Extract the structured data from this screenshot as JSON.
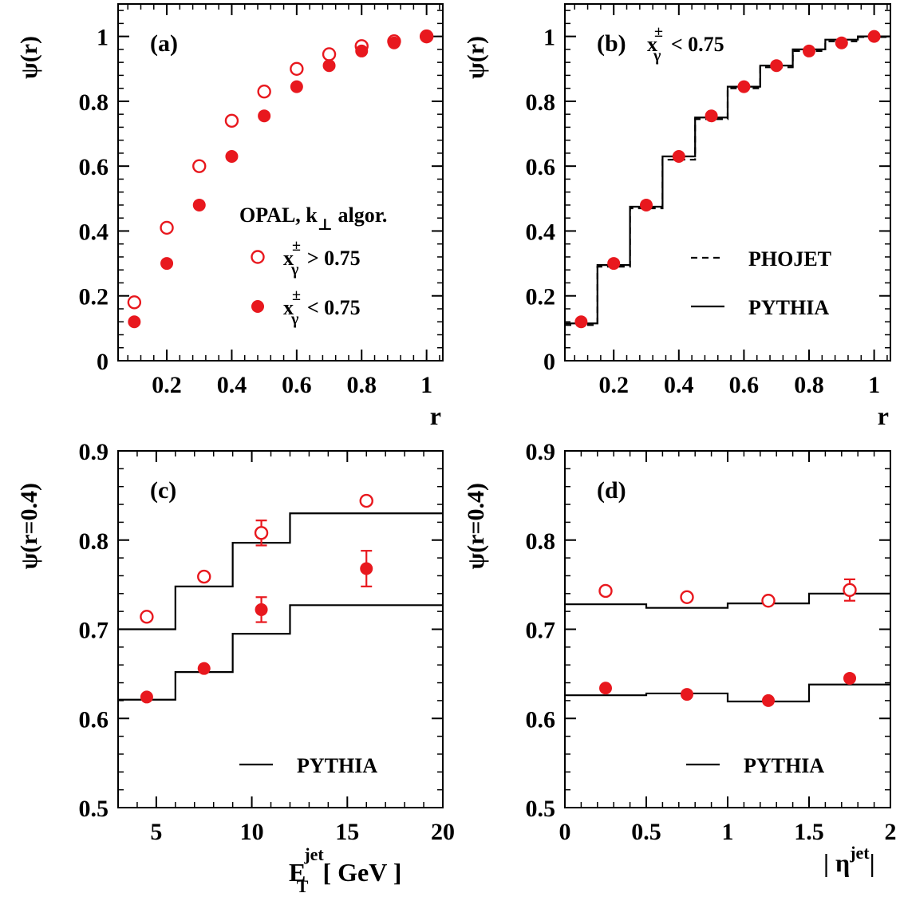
{
  "colors": {
    "data": "#e8181e",
    "frame": "#000000",
    "model": "#000000"
  },
  "chart_data": [
    {
      "id": "a",
      "type": "scatter",
      "panel_label": "(a)",
      "xlabel": "r",
      "ylabel": "ψ(r)",
      "xlim": [
        0.05,
        1.05
      ],
      "ylim": [
        0,
        1.1
      ],
      "xticks": [
        0.2,
        0.4,
        0.6,
        0.8,
        1
      ],
      "xtick_labels": [
        "0.2",
        "0.4",
        "0.6",
        "0.8",
        "1"
      ],
      "yticks": [
        0,
        0.2,
        0.4,
        0.6,
        0.8,
        1
      ],
      "ytick_labels": [
        "0",
        "0.2",
        "0.4",
        "0.6",
        "0.8",
        "1"
      ],
      "legend_title": "OPAL,  k",
      "legend_title_sub": "⊥",
      "legend_title_tail": " algor.",
      "series": [
        {
          "name": "x",
          "sup": "±",
          "sub": "γ",
          "cond": "> 0.75",
          "marker": "open",
          "x": [
            0.1,
            0.2,
            0.3,
            0.4,
            0.5,
            0.6,
            0.7,
            0.8,
            0.9,
            1.0
          ],
          "y": [
            0.18,
            0.41,
            0.6,
            0.74,
            0.83,
            0.9,
            0.945,
            0.97,
            0.985,
            1.0
          ]
        },
        {
          "name": "x",
          "sup": "±",
          "sub": "γ",
          "cond": "< 0.75",
          "marker": "filled",
          "x": [
            0.1,
            0.2,
            0.3,
            0.4,
            0.5,
            0.6,
            0.7,
            0.8,
            0.9,
            1.0
          ],
          "y": [
            0.12,
            0.3,
            0.48,
            0.63,
            0.755,
            0.845,
            0.91,
            0.955,
            0.98,
            1.0
          ]
        }
      ]
    },
    {
      "id": "b",
      "type": "scatter",
      "panel_label": "(b)",
      "header_var": "x",
      "header_sup": "±",
      "header_sub": "γ",
      "header_cond": "< 0.75",
      "xlabel": "r",
      "ylabel": "ψ(r)",
      "xlim": [
        0.05,
        1.05
      ],
      "ylim": [
        0,
        1.1
      ],
      "xticks": [
        0.2,
        0.4,
        0.6,
        0.8,
        1
      ],
      "xtick_labels": [
        "0.2",
        "0.4",
        "0.6",
        "0.8",
        "1"
      ],
      "yticks": [
        0,
        0.2,
        0.4,
        0.6,
        0.8,
        1
      ],
      "ytick_labels": [
        "0",
        "0.2",
        "0.4",
        "0.6",
        "0.8",
        "1"
      ],
      "series": [
        {
          "marker": "filled",
          "x": [
            0.1,
            0.2,
            0.3,
            0.4,
            0.5,
            0.6,
            0.7,
            0.8,
            0.9,
            1.0
          ],
          "y": [
            0.12,
            0.3,
            0.48,
            0.63,
            0.755,
            0.845,
            0.91,
            0.955,
            0.98,
            1.0
          ]
        }
      ],
      "models": [
        {
          "name": "PHOJET",
          "style": "dashed",
          "edges": [
            0.05,
            0.15,
            0.25,
            0.35,
            0.45,
            0.55,
            0.65,
            0.75,
            0.85,
            0.95,
            1.05
          ],
          "values": [
            0.11,
            0.29,
            0.47,
            0.62,
            0.745,
            0.84,
            0.905,
            0.955,
            0.985,
            0.998
          ]
        },
        {
          "name": "PYTHIA",
          "style": "solid",
          "edges": [
            0.05,
            0.15,
            0.25,
            0.35,
            0.45,
            0.55,
            0.65,
            0.75,
            0.85,
            0.95,
            1.05
          ],
          "values": [
            0.115,
            0.295,
            0.475,
            0.63,
            0.75,
            0.845,
            0.91,
            0.96,
            0.99,
            1.0
          ]
        }
      ]
    },
    {
      "id": "c",
      "type": "scatter",
      "panel_label": "(c)",
      "xlabel": "E",
      "xlabel_sup": "jet",
      "xlabel_sub": "T",
      "xlabel_unit": "[ GeV ]",
      "ylabel": "ψ(r=0.4)",
      "xlim": [
        3,
        20
      ],
      "ylim": [
        0.5,
        0.9
      ],
      "xticks": [
        5,
        10,
        15,
        20
      ],
      "xtick_labels": [
        "5",
        "10",
        "15",
        "20"
      ],
      "yticks": [
        0.5,
        0.6,
        0.7,
        0.8,
        0.9
      ],
      "ytick_labels": [
        "0.5",
        "0.6",
        "0.7",
        "0.8",
        "0.9"
      ],
      "series": [
        {
          "marker": "open",
          "x": [
            4.5,
            7.5,
            10.5,
            16
          ],
          "y": [
            0.714,
            0.759,
            0.808,
            0.844
          ],
          "err": [
            0.003,
            0.004,
            0.014,
            0.006
          ]
        },
        {
          "marker": "filled",
          "x": [
            4.5,
            7.5,
            10.5,
            16
          ],
          "y": [
            0.624,
            0.656,
            0.722,
            0.768
          ],
          "err": [
            0.003,
            0.004,
            0.014,
            0.02
          ]
        }
      ],
      "models": [
        {
          "name": "PYTHIA",
          "style": "solid",
          "edges": [
            3,
            6,
            9,
            12,
            20
          ],
          "values": [
            0.7,
            0.748,
            0.797,
            0.83
          ]
        },
        {
          "name": "",
          "style": "solid",
          "edges": [
            3,
            6,
            9,
            12,
            20
          ],
          "values": [
            0.621,
            0.652,
            0.695,
            0.727
          ]
        }
      ]
    },
    {
      "id": "d",
      "type": "scatter",
      "panel_label": "(d)",
      "xlabel": "| η",
      "xlabel_sup": "jet",
      "xlabel_tail": "|",
      "ylabel": "ψ(r=0.4)",
      "xlim": [
        0,
        2
      ],
      "ylim": [
        0.5,
        0.9
      ],
      "xticks": [
        0,
        0.5,
        1,
        1.5,
        2
      ],
      "xtick_labels": [
        "0",
        "0.5",
        "1",
        "1.5",
        "2"
      ],
      "yticks": [
        0.5,
        0.6,
        0.7,
        0.8,
        0.9
      ],
      "ytick_labels": [
        "0.5",
        "0.6",
        "0.7",
        "0.8",
        "0.9"
      ],
      "series": [
        {
          "marker": "open",
          "x": [
            0.25,
            0.75,
            1.25,
            1.75
          ],
          "y": [
            0.743,
            0.736,
            0.732,
            0.744
          ],
          "err": [
            0.004,
            0.004,
            0.006,
            0.012
          ]
        },
        {
          "marker": "filled",
          "x": [
            0.25,
            0.75,
            1.25,
            1.75
          ],
          "y": [
            0.634,
            0.627,
            0.62,
            0.645
          ],
          "err": [
            0.002,
            0.002,
            0.003,
            0.004
          ]
        }
      ],
      "models": [
        {
          "name": "PYTHIA",
          "style": "solid",
          "edges": [
            0,
            0.5,
            1,
            1.5,
            2
          ],
          "values": [
            0.626,
            0.628,
            0.619,
            0.638
          ]
        },
        {
          "name": "",
          "style": "solid",
          "edges": [
            0,
            0.5,
            1,
            1.5,
            2
          ],
          "values": [
            0.728,
            0.724,
            0.729,
            0.74
          ]
        }
      ]
    }
  ]
}
